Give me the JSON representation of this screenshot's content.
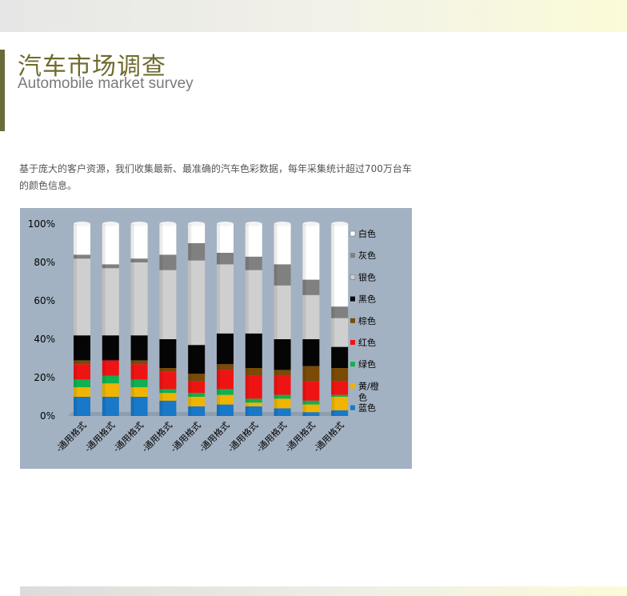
{
  "header": {
    "title_cn": "汽车市场调查",
    "title_en": "Automobile market survey"
  },
  "description": "基于庞大的客户资源，我们收集最新、最准确的汽车色彩数据，每年采集统计超过700万台车的颜色信息。",
  "colors": {
    "chart_bg": "#a3b2c2",
    "accent": "#6b6b38",
    "series": {
      "蓝色": "#1a78c8",
      "黄/橙色": "#f0b400",
      "绿色": "#10b050",
      "红色": "#ee1414",
      "棕色": "#7a4a06",
      "黑色": "#050505",
      "银色": "#cfcfcf",
      "灰色": "#808080",
      "白色": "#ffffff"
    }
  },
  "chart_data": {
    "type": "bar",
    "stacked": true,
    "percent": true,
    "categories": [
      "-通用格式",
      "-通用格式",
      "-通用格式",
      "-通用格式",
      "-通用格式",
      "-通用格式",
      "-通用格式",
      "-通用格式",
      "-通用格式",
      "-通用格式"
    ],
    "y_ticks": [
      "0%",
      "20%",
      "40%",
      "60%",
      "80%",
      "100%"
    ],
    "ylim": [
      0,
      100
    ],
    "legend_position": "right",
    "series": [
      {
        "name": "蓝色",
        "values": [
          10,
          10,
          10,
          8,
          5,
          6,
          5,
          4,
          2,
          3
        ]
      },
      {
        "name": "黄/橙色",
        "values": [
          5,
          7,
          5,
          4,
          5,
          5,
          2,
          5,
          4,
          7
        ]
      },
      {
        "name": "绿色",
        "values": [
          4,
          4,
          4,
          2,
          2,
          3,
          2,
          2,
          2,
          1
        ]
      },
      {
        "name": "红色",
        "values": [
          8,
          8,
          8,
          9,
          6,
          10,
          12,
          10,
          10,
          7
        ]
      },
      {
        "name": "棕色",
        "values": [
          2,
          0,
          2,
          2,
          4,
          3,
          4,
          3,
          8,
          7
        ]
      },
      {
        "name": "黑色",
        "values": [
          13,
          13,
          13,
          15,
          15,
          16,
          18,
          16,
          14,
          11
        ]
      },
      {
        "name": "银色",
        "values": [
          40,
          35,
          38,
          36,
          44,
          36,
          33,
          28,
          23,
          15
        ]
      },
      {
        "name": "灰色",
        "values": [
          2,
          2,
          2,
          8,
          9,
          6,
          7,
          11,
          8,
          6
        ]
      },
      {
        "name": "白色",
        "values": [
          16,
          21,
          18,
          16,
          10,
          15,
          17,
          21,
          29,
          43
        ]
      }
    ],
    "legend_order": [
      "白色",
      "灰色",
      "银色",
      "黑色",
      "棕色",
      "红色",
      "绿色",
      "黄/橙色",
      "蓝色"
    ]
  }
}
